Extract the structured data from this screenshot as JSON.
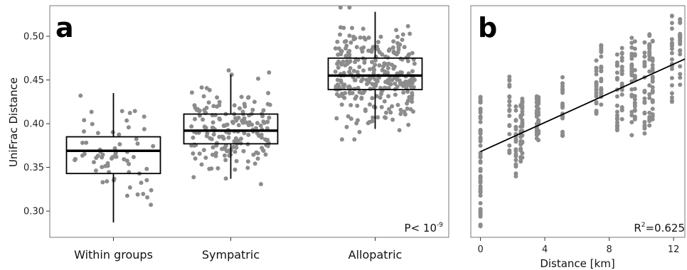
{
  "chart_data": [
    {
      "panel": "a",
      "type": "box",
      "categories": [
        "Within groups",
        "Sympatric",
        "Allopatric"
      ],
      "ylabel": "UniFrac Distance",
      "xlabel": "",
      "ylim": [
        0.27,
        0.535
      ],
      "yticks": [
        "0.30",
        "0.35",
        "0.40",
        "0.45",
        "0.50"
      ],
      "ytick_values": [
        0.3,
        0.35,
        0.4,
        0.45,
        0.5
      ],
      "boxes": [
        {
          "category": "Within groups",
          "whisker_low": 0.287,
          "q1": 0.343,
          "median": 0.369,
          "q3": 0.385,
          "whisker_high": 0.435
        },
        {
          "category": "Sympatric",
          "whisker_low": 0.337,
          "q1": 0.377,
          "median": 0.392,
          "q3": 0.411,
          "whisker_high": 0.456
        },
        {
          "category": "Allopatric",
          "whisker_low": 0.394,
          "q1": 0.439,
          "median": 0.455,
          "q3": 0.475,
          "whisker_high": 0.528
        }
      ],
      "point_counts": [
        66,
        190,
        300
      ],
      "annotation": {
        "text": "P< 10",
        "exponent": "-9"
      },
      "point_color": "#8c8c8c",
      "grid": false
    },
    {
      "panel": "b",
      "type": "scatter",
      "xlabel": "Distance [km]",
      "ylabel": "",
      "xlim": [
        -0.6,
        12.7
      ],
      "ylim": [
        0.27,
        0.535
      ],
      "xticks": [
        "0",
        "4",
        "8",
        "12"
      ],
      "xtick_values": [
        0,
        4,
        8,
        12
      ],
      "x_columns": [
        0,
        1.8,
        2.2,
        2.5,
        2.6,
        3.5,
        3.6,
        5.1,
        7.2,
        7.5,
        8.5,
        8.8,
        9.4,
        9.6,
        10.2,
        10.5,
        10.7,
        11.9,
        12.4
      ],
      "y_ranges": [
        [
          0.278,
          0.435
        ],
        [
          0.365,
          0.455
        ],
        [
          0.336,
          0.43
        ],
        [
          0.356,
          0.425
        ],
        [
          0.36,
          0.43
        ],
        [
          0.38,
          0.44
        ],
        [
          0.375,
          0.435
        ],
        [
          0.385,
          0.455
        ],
        [
          0.405,
          0.485
        ],
        [
          0.42,
          0.49
        ],
        [
          0.39,
          0.48
        ],
        [
          0.405,
          0.49
        ],
        [
          0.385,
          0.515
        ],
        [
          0.395,
          0.505
        ],
        [
          0.385,
          0.495
        ],
        [
          0.395,
          0.505
        ],
        [
          0.4,
          0.495
        ],
        [
          0.425,
          0.53
        ],
        [
          0.44,
          0.52
        ]
      ],
      "fit_line": {
        "x": [
          0,
          12.7
        ],
        "y": [
          0.368,
          0.474
        ]
      },
      "annotation": {
        "prefix": "R",
        "exponent": "2",
        "suffix": "=0.625"
      },
      "point_color": "#8c8c8c",
      "grid": false
    }
  ],
  "panel_letters": [
    "a",
    "b"
  ]
}
